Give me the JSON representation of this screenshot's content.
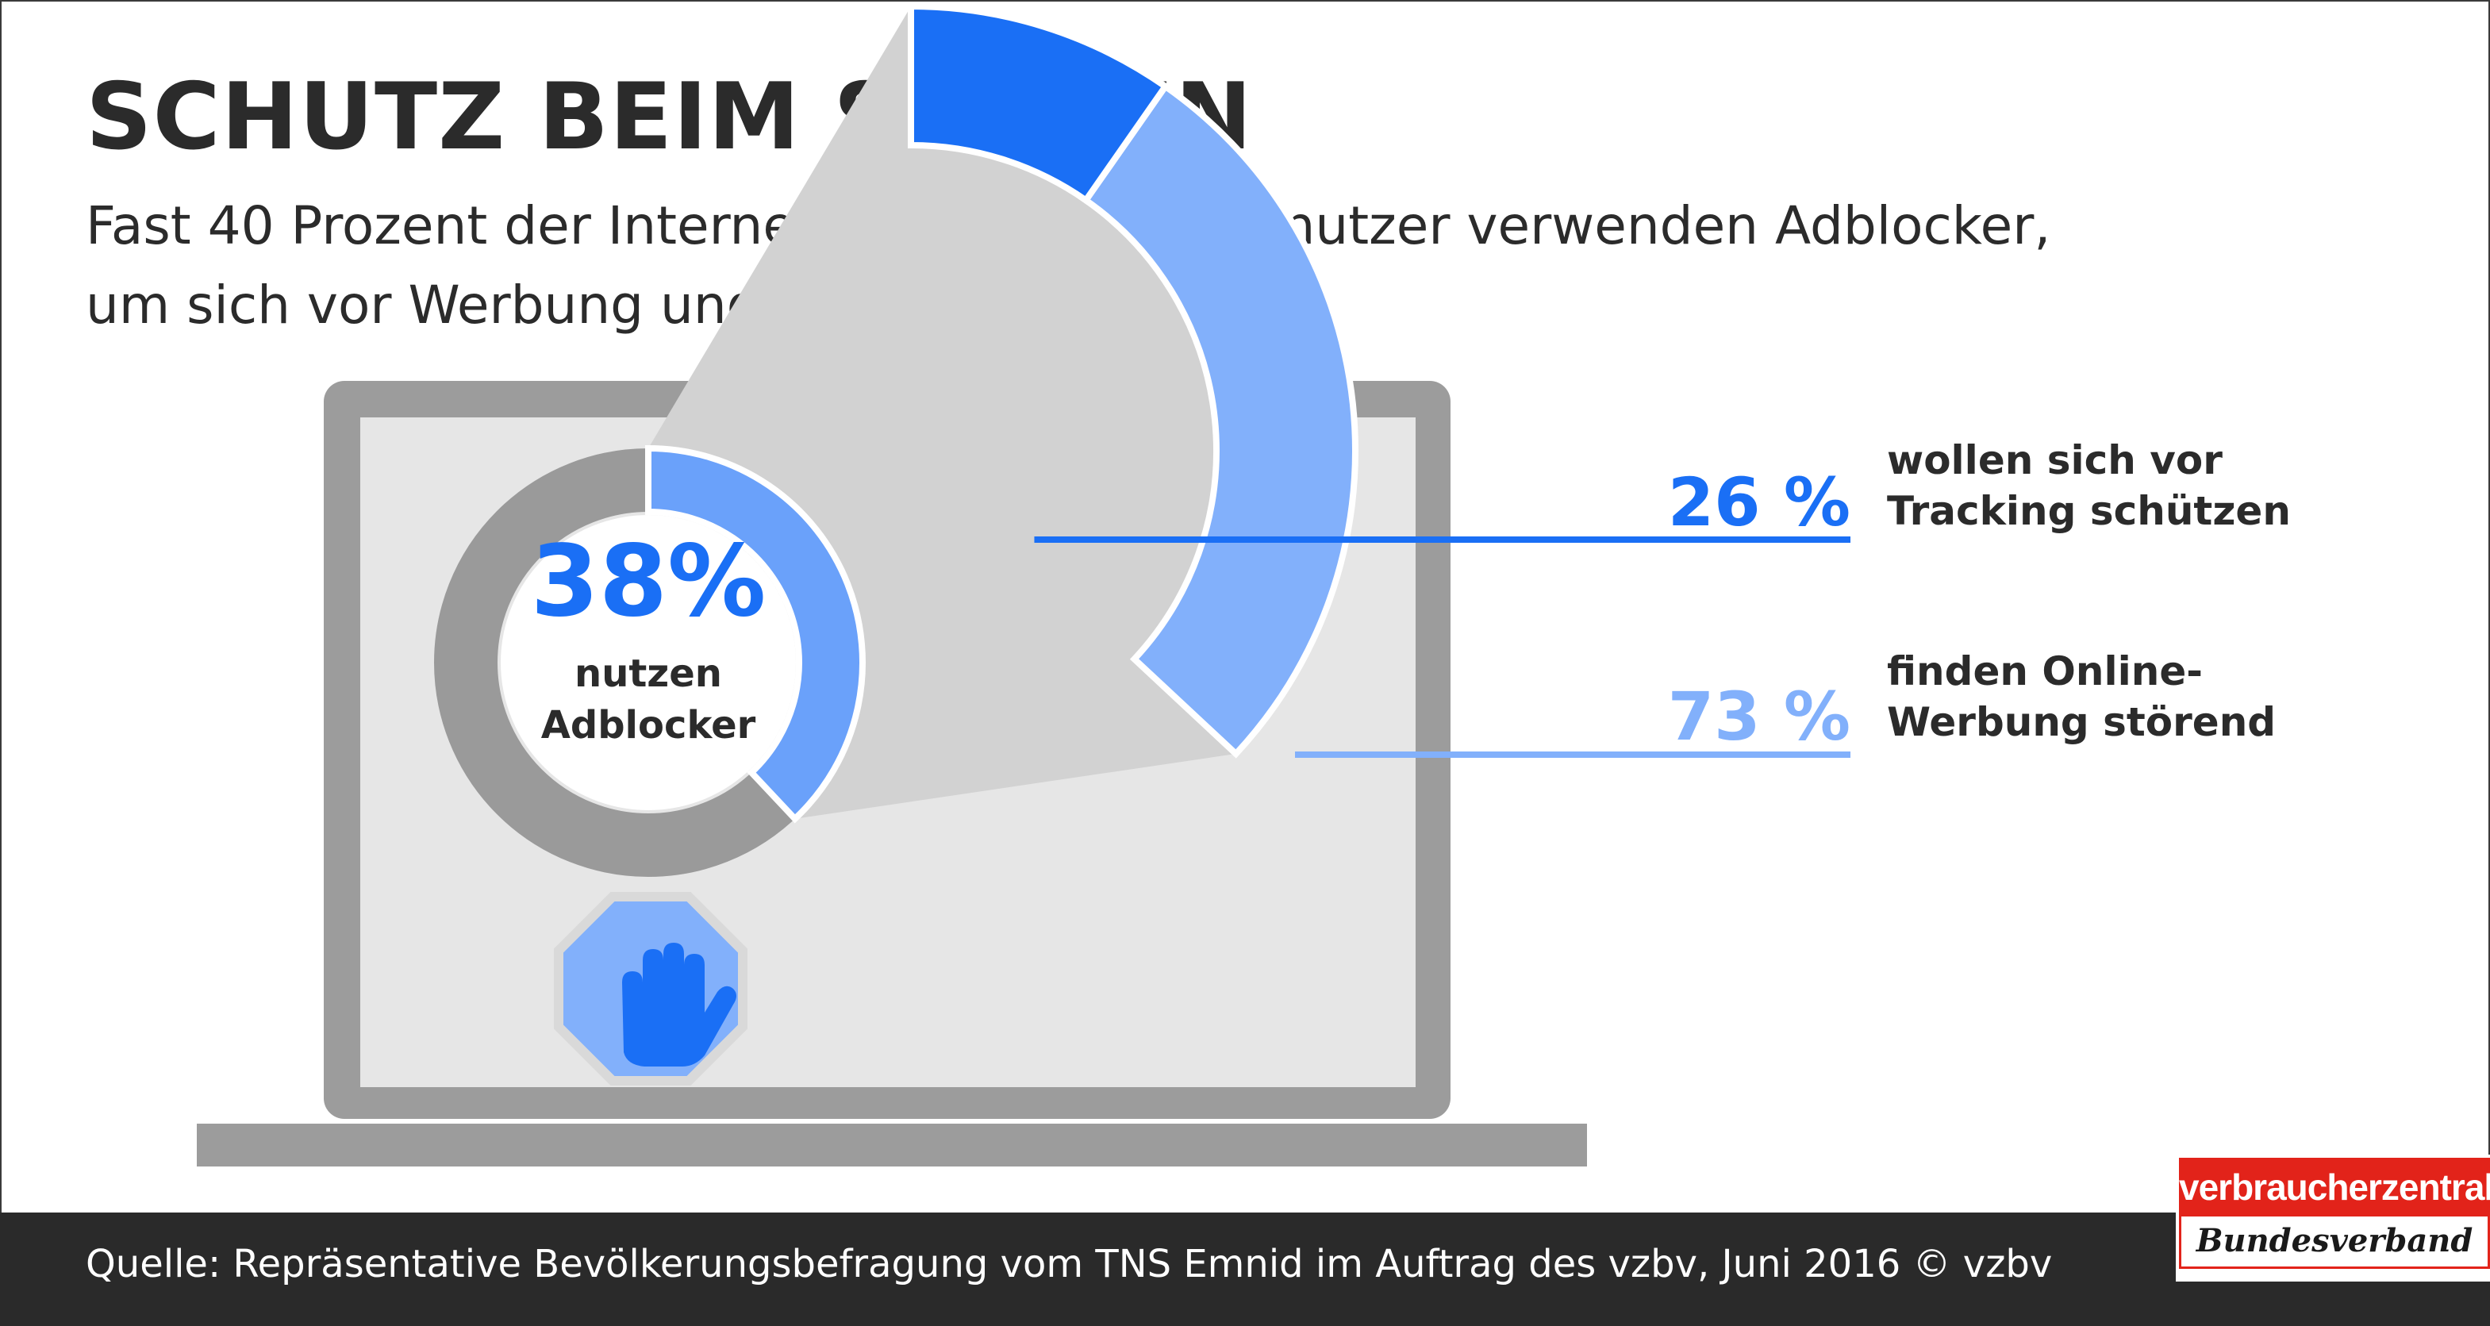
{
  "header": {
    "title": "SCHUTZ BEIM SURFEN",
    "subtitle_line1": "Fast 40 Prozent der Internetnutzerinnen und -nutzer verwenden Adblocker,",
    "subtitle_line2": "um sich vor Werbung und Tracking zu schützen."
  },
  "chart_data": {
    "type": "pie",
    "main": {
      "value": 38,
      "value_label": "38%",
      "label_line1": "nutzen",
      "label_line2": "Adblocker"
    },
    "breakdown": [
      {
        "value": 26,
        "value_label": "26 %",
        "label_line1": "wollen sich vor",
        "label_line2": "Tracking schützen",
        "color": "#1a6ff5"
      },
      {
        "value": 73,
        "value_label": "73 %",
        "label_line1": "finden Online-",
        "label_line2": "Werbung störend",
        "color": "#82b0fb"
      }
    ]
  },
  "colors": {
    "accent_dark": "#1a6ff5",
    "accent_light": "#82b0fb",
    "ring_highlight": "#6aa1fa",
    "ring_gray": "#9a9a9a",
    "laptop_gray": "#9c9c9c",
    "screen_bg": "#e6e6e6"
  },
  "icons": {
    "stop_hand": "stop-hand-icon"
  },
  "footer": {
    "source": "Quelle: Repräsentative Bevölkerungsbefragung vom TNS Emnid im Auftrag des vzbv, Juni 2016 © vzbv"
  },
  "logo": {
    "top": "verbraucherzentrale",
    "bottom": "Bundesverband"
  }
}
